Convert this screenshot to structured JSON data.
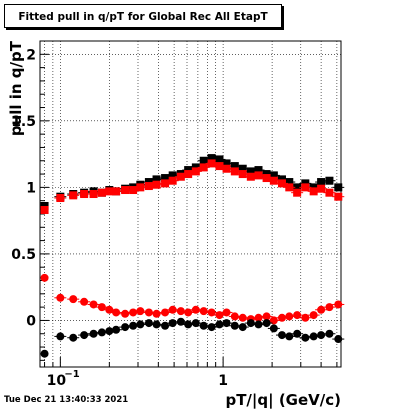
{
  "title": "Fitted pull in q/pT for Global Rec All EtapT",
  "timestamp": "Tue Dec 21 13:40:33 2021",
  "colors": {
    "series_black": "#000000",
    "series_red": "#ff0000",
    "grid": "#000000",
    "background": "#ffffff"
  },
  "chart_data": {
    "type": "scatter",
    "xlabel": "pT/|q| (GeV/c)",
    "ylabel": "pull in q/pT",
    "xscale": "log",
    "xlim": [
      0.075,
      5.3
    ],
    "ylim": [
      -0.35,
      2.1
    ],
    "grid": true,
    "xticks": [
      {
        "value": 0.1,
        "label": "10",
        "exp": "−1"
      },
      {
        "value": 1,
        "label": "1",
        "exp": ""
      }
    ],
    "yticks": [
      {
        "value": 0,
        "label": "0"
      },
      {
        "value": 0.5,
        "label": "0.5"
      },
      {
        "value": 1,
        "label": "1"
      },
      {
        "value": 1.5,
        "label": "1.5"
      },
      {
        "value": 2,
        "label": "2"
      }
    ],
    "series": [
      {
        "marker": "square",
        "color": "#000000",
        "x": [
          0.08,
          0.1,
          0.12,
          0.14,
          0.16,
          0.18,
          0.2,
          0.22,
          0.25,
          0.28,
          0.31,
          0.35,
          0.39,
          0.44,
          0.49,
          0.55,
          0.61,
          0.68,
          0.76,
          0.85,
          0.95,
          1.05,
          1.18,
          1.32,
          1.48,
          1.65,
          1.85,
          2.05,
          2.3,
          2.55,
          2.85,
          3.2,
          3.6,
          4.0,
          4.5,
          5.1
        ],
        "y": [
          0.86,
          0.93,
          0.95,
          0.96,
          0.97,
          0.96,
          0.98,
          0.97,
          0.99,
          1.0,
          1.02,
          1.04,
          1.06,
          1.07,
          1.09,
          1.1,
          1.13,
          1.15,
          1.2,
          1.22,
          1.21,
          1.18,
          1.16,
          1.14,
          1.12,
          1.13,
          1.1,
          1.09,
          1.06,
          1.04,
          1.0,
          1.03,
          1.0,
          1.04,
          1.05,
          1.0
        ]
      },
      {
        "marker": "square",
        "color": "#ff0000",
        "x": [
          0.08,
          0.1,
          0.12,
          0.14,
          0.16,
          0.18,
          0.2,
          0.22,
          0.25,
          0.28,
          0.31,
          0.35,
          0.39,
          0.44,
          0.49,
          0.55,
          0.61,
          0.68,
          0.76,
          0.85,
          0.95,
          1.05,
          1.18,
          1.32,
          1.48,
          1.65,
          1.85,
          2.05,
          2.3,
          2.55,
          2.85,
          3.2,
          3.6,
          4.0,
          4.5,
          5.1
        ],
        "y": [
          0.83,
          0.92,
          0.94,
          0.95,
          0.95,
          0.96,
          0.97,
          0.97,
          0.98,
          0.98,
          1.0,
          1.01,
          1.02,
          1.03,
          1.05,
          1.08,
          1.1,
          1.12,
          1.15,
          1.18,
          1.16,
          1.14,
          1.12,
          1.1,
          1.08,
          1.09,
          1.07,
          1.05,
          1.03,
          1.0,
          0.96,
          1.0,
          0.97,
          0.99,
          0.96,
          0.93
        ]
      },
      {
        "marker": "circle",
        "color": "#ff0000",
        "x": [
          0.08,
          0.1,
          0.12,
          0.14,
          0.16,
          0.18,
          0.2,
          0.22,
          0.25,
          0.28,
          0.31,
          0.35,
          0.39,
          0.44,
          0.49,
          0.55,
          0.61,
          0.68,
          0.76,
          0.85,
          0.95,
          1.05,
          1.18,
          1.32,
          1.48,
          1.65,
          1.85,
          2.05,
          2.3,
          2.55,
          2.85,
          3.2,
          3.6,
          4.0,
          4.5,
          5.1
        ],
        "y": [
          0.32,
          0.17,
          0.16,
          0.14,
          0.12,
          0.1,
          0.08,
          0.06,
          0.05,
          0.06,
          0.07,
          0.06,
          0.05,
          0.06,
          0.08,
          0.07,
          0.06,
          0.08,
          0.07,
          0.06,
          0.04,
          0.06,
          0.03,
          0.02,
          0.01,
          0.02,
          0.03,
          0.0,
          0.02,
          0.03,
          0.04,
          0.02,
          0.04,
          0.08,
          0.1,
          0.12
        ]
      },
      {
        "marker": "circle",
        "color": "#000000",
        "x": [
          0.08,
          0.1,
          0.12,
          0.14,
          0.16,
          0.18,
          0.2,
          0.22,
          0.25,
          0.28,
          0.31,
          0.35,
          0.39,
          0.44,
          0.49,
          0.55,
          0.61,
          0.68,
          0.76,
          0.85,
          0.95,
          1.05,
          1.18,
          1.32,
          1.48,
          1.65,
          1.85,
          2.05,
          2.3,
          2.55,
          2.85,
          3.2,
          3.6,
          4.0,
          4.5,
          5.1
        ],
        "y": [
          -0.25,
          -0.12,
          -0.13,
          -0.11,
          -0.1,
          -0.09,
          -0.08,
          -0.07,
          -0.05,
          -0.04,
          -0.03,
          -0.02,
          -0.03,
          -0.04,
          -0.02,
          -0.01,
          -0.03,
          -0.02,
          -0.04,
          -0.05,
          -0.03,
          -0.02,
          -0.04,
          -0.05,
          -0.02,
          -0.03,
          -0.02,
          -0.06,
          -0.11,
          -0.12,
          -0.1,
          -0.13,
          -0.12,
          -0.11,
          -0.1,
          -0.14
        ]
      }
    ]
  }
}
